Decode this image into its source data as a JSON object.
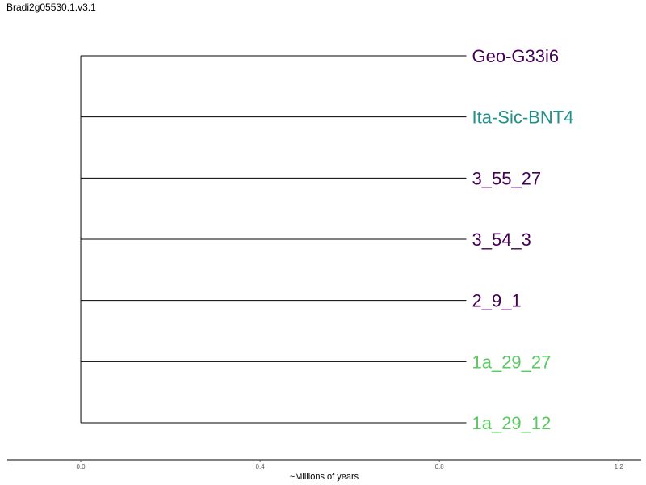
{
  "title": "Bradi2g05530.1.v3.1",
  "chart_data": {
    "type": "phylogenetic-tree",
    "xlabel": "~Millions of years",
    "xlim": [
      -0.164,
      1.25
    ],
    "ticks": [
      0.0,
      0.4,
      0.8,
      1.2
    ],
    "tick_labels": [
      "0.0",
      "0.4",
      "0.8",
      "1.2"
    ],
    "root_x": 0.0,
    "leaves": [
      {
        "name": "Geo-G33i6",
        "branch_end": 0.86,
        "color": "#440154"
      },
      {
        "name": "Ita-Sic-BNT4",
        "branch_end": 0.86,
        "color": "#21908c"
      },
      {
        "name": "3_55_27",
        "branch_end": 0.86,
        "color": "#440154"
      },
      {
        "name": "3_54_3",
        "branch_end": 0.86,
        "color": "#440154"
      },
      {
        "name": "2_9_1",
        "branch_end": 0.86,
        "color": "#440154"
      },
      {
        "name": "1a_29_27",
        "branch_end": 0.86,
        "color": "#5cc863"
      },
      {
        "name": "1a_29_12",
        "branch_end": 0.86,
        "color": "#5cc863"
      }
    ]
  }
}
